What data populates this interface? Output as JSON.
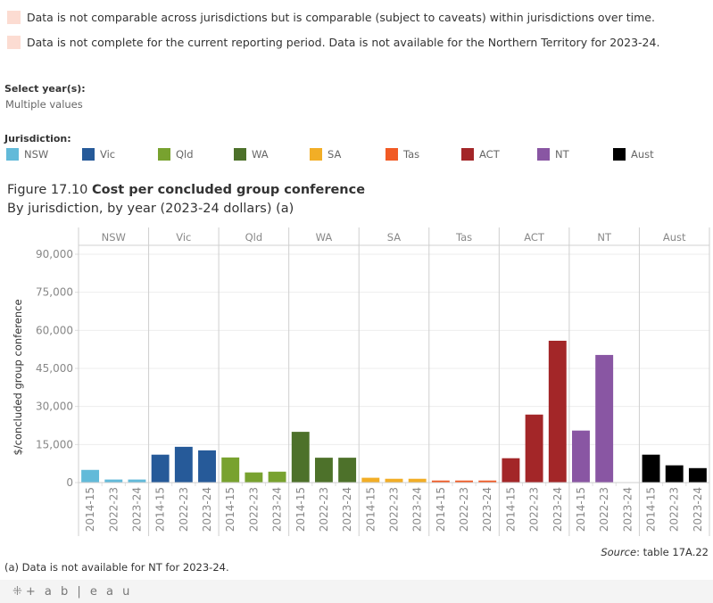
{
  "notes": [
    {
      "text": "Data is not comparable across jurisdictions but is comparable (subject to caveats) within jurisdictions over time.",
      "color": "#fcdcd2"
    },
    {
      "text": "Data is not complete for the current reporting period. Data is not available for the Northern Territory for 2023-24.",
      "color": "#fcdcd2"
    }
  ],
  "filter": {
    "label": "Select year(s):",
    "value": "Multiple values"
  },
  "legend": {
    "title": "Jurisdiction:",
    "items": [
      {
        "label": "NSW",
        "color": "#62bad9"
      },
      {
        "label": "Vic",
        "color": "#265a99"
      },
      {
        "label": "Qld",
        "color": "#78a22f"
      },
      {
        "label": "WA",
        "color": "#4d712a"
      },
      {
        "label": "SA",
        "color": "#f2ae26"
      },
      {
        "label": "Tas",
        "color": "#f15a24"
      },
      {
        "label": "ACT",
        "color": "#a32628"
      },
      {
        "label": "NT",
        "color": "#8956a3"
      },
      {
        "label": "Aust",
        "color": "#000000"
      }
    ]
  },
  "figure": {
    "number": "Figure 17.10",
    "title": "Cost per concluded group conference",
    "subtitle": "By jurisdiction, by year (2023-24 dollars) (a)"
  },
  "chart_data": {
    "type": "bar",
    "title": "Cost per concluded group conference",
    "subtitle": "By jurisdiction, by year (2023-24 dollars) (a)",
    "xlabel": "",
    "ylabel": "$/concluded group conference",
    "ylim": [
      0,
      90000
    ],
    "yticks": [
      0,
      15000,
      30000,
      45000,
      60000,
      75000,
      90000
    ],
    "ytick_labels": [
      "0",
      "15,000",
      "30,000",
      "45,000",
      "60,000",
      "75,000",
      "90,000"
    ],
    "grid": true,
    "categories": [
      "2014-15",
      "2022-23",
      "2023-24"
    ],
    "panels": [
      {
        "name": "NSW",
        "color": "#62bad9",
        "values": [
          5000,
          1200,
          1200
        ]
      },
      {
        "name": "Vic",
        "color": "#265a99",
        "values": [
          11000,
          14100,
          12700
        ]
      },
      {
        "name": "Qld",
        "color": "#78a22f",
        "values": [
          9900,
          4000,
          4300
        ]
      },
      {
        "name": "WA",
        "color": "#4d712a",
        "values": [
          20000,
          9800,
          9800
        ]
      },
      {
        "name": "SA",
        "color": "#f2ae26",
        "values": [
          1900,
          1500,
          1500
        ]
      },
      {
        "name": "Tas",
        "color": "#f15a24",
        "values": [
          800,
          800,
          800
        ]
      },
      {
        "name": "ACT",
        "color": "#a32628",
        "values": [
          9600,
          26800,
          55900
        ]
      },
      {
        "name": "NT",
        "color": "#8956a3",
        "values": [
          20500,
          50300,
          null
        ]
      },
      {
        "name": "Aust",
        "color": "#000000",
        "values": [
          11000,
          6800,
          5700
        ]
      }
    ]
  },
  "source": {
    "label": "Source",
    "text": ": table 17A.22"
  },
  "footnote": "(a) Data is not available for NT for 2023-24.",
  "footer": {
    "logo_text": "+ a b | e a u",
    "logo_icon": "tableau-logo-icon"
  }
}
